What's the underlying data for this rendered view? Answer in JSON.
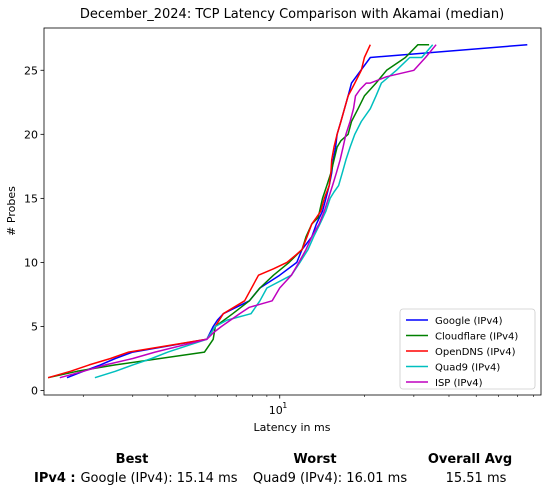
{
  "chart_data": {
    "type": "line",
    "title": "December_2024: TCP Latency Comparison with Akamai (median)",
    "xlabel": "Latency in ms",
    "ylabel": "# Probes",
    "xscale": "log",
    "xlim": [
      1.45,
      85
    ],
    "ylim": [
      -0.35,
      28.3
    ],
    "x_ticks": [
      {
        "value": 10,
        "label": "10",
        "sup": "1"
      }
    ],
    "y_ticks": [
      0,
      5,
      10,
      15,
      20,
      25
    ],
    "grid": false,
    "legend": "bottom-right",
    "series": [
      {
        "name": "Google (IPv4)",
        "color": "#0000ff",
        "x": [
          1.75,
          2.0,
          2.3,
          2.6,
          3.0,
          5.5,
          5.8,
          6.0,
          6.3,
          7.8,
          8.5,
          10.0,
          11.5,
          12.0,
          13.0,
          13.5,
          14.2,
          14.6,
          15.0,
          15.3,
          15.5,
          15.8,
          16.0,
          16.5,
          17.0,
          17.5,
          18.0,
          21.0,
          76.0
        ],
        "y": [
          1,
          1.5,
          2,
          2.5,
          3,
          4,
          5,
          5.5,
          6,
          7,
          8,
          9,
          10,
          11,
          12,
          13,
          14,
          15,
          16,
          17,
          18,
          19,
          20,
          21,
          22,
          23,
          24,
          26,
          27
        ]
      },
      {
        "name": "Cloudflare (IPv4)",
        "color": "#008000",
        "x": [
          1.5,
          1.9,
          2.6,
          5.4,
          5.8,
          5.9,
          6.8,
          7.8,
          8.5,
          9.5,
          10.8,
          12.0,
          12.4,
          13.0,
          13.7,
          14.2,
          14.7,
          15.2,
          15.6,
          16.0,
          16.5,
          17.5,
          18.0,
          19.0,
          20.0,
          22.0,
          24.0,
          28.0,
          31.0,
          34.0
        ],
        "y": [
          1,
          1.5,
          2,
          3,
          4,
          5,
          6,
          7,
          8,
          9,
          10,
          11,
          12,
          13,
          13.5,
          15,
          16,
          17,
          18,
          19,
          19.5,
          20,
          21,
          22,
          23,
          24,
          25,
          26,
          27,
          27
        ]
      },
      {
        "name": "OpenDNS (IPv4)",
        "color": "#ff0000",
        "x": [
          1.5,
          1.8,
          2.1,
          2.5,
          2.9,
          5.5,
          5.9,
          6.3,
          7.5,
          8.4,
          9.5,
          10.6,
          11.3,
          12.0,
          12.5,
          13.0,
          13.5,
          14.0,
          14.4,
          15.0,
          15.2,
          15.3,
          15.6,
          16.0,
          16.5,
          17.0,
          17.5,
          18.0,
          18.5,
          19.5,
          20.0,
          21.0
        ],
        "y": [
          1,
          1.5,
          2,
          2.5,
          3,
          4,
          5,
          6,
          7,
          9,
          9.5,
          10,
          10.5,
          11,
          12,
          13,
          13.5,
          14,
          15,
          16,
          17,
          18,
          19,
          20,
          21,
          22,
          23,
          23.5,
          24,
          25,
          26,
          27
        ]
      },
      {
        "name": "Quad9 (IPv4)",
        "color": "#00bfbf",
        "x": [
          2.2,
          2.6,
          3.0,
          3.5,
          4.0,
          5.5,
          5.9,
          6.5,
          7.9,
          8.5,
          9.0,
          11.0,
          11.8,
          12.6,
          13.2,
          13.9,
          14.6,
          15.1,
          15.6,
          16.2,
          16.7,
          17.2,
          17.8,
          18.5,
          19.5,
          21.0,
          22.0,
          23.0,
          26.0,
          29.0,
          32.0,
          35.0
        ],
        "y": [
          1,
          1.5,
          2,
          2.5,
          3,
          4,
          5,
          5.5,
          6,
          7,
          8,
          9,
          10,
          11,
          12,
          13,
          14,
          15,
          15.5,
          16,
          17,
          18,
          19,
          20,
          21,
          22,
          23,
          24,
          25,
          26,
          26,
          27
        ]
      },
      {
        "name": "ISP (IPv4)",
        "color": "#bf00bf",
        "x": [
          1.65,
          2.0,
          2.4,
          3.0,
          3.6,
          5.5,
          5.8,
          6.2,
          7.2,
          7.8,
          9.4,
          10.0,
          11.0,
          11.7,
          12.4,
          13.0,
          13.8,
          14.4,
          14.9,
          15.4,
          15.9,
          16.4,
          16.8,
          17.2,
          17.8,
          18.3,
          18.6,
          19.3,
          20.3,
          21.0,
          24.0,
          30.0,
          33.0,
          36.0
        ],
        "y": [
          1,
          1.5,
          2,
          2.5,
          3,
          4,
          4.5,
          5,
          6,
          6.5,
          7,
          8,
          9,
          10,
          11,
          12,
          13,
          14,
          15,
          16,
          17,
          18,
          19,
          20,
          21,
          22,
          23,
          23.5,
          24,
          24,
          24.5,
          25,
          26,
          27
        ]
      }
    ]
  },
  "summary": {
    "headers": {
      "best": "Best",
      "worst": "Worst",
      "avg": "Overall Avg"
    },
    "row_label": "IPv4 :",
    "best": "Google (IPv4): 15.14 ms",
    "worst": "Quad9 (IPv4): 16.01 ms",
    "avg": "15.51 ms"
  }
}
